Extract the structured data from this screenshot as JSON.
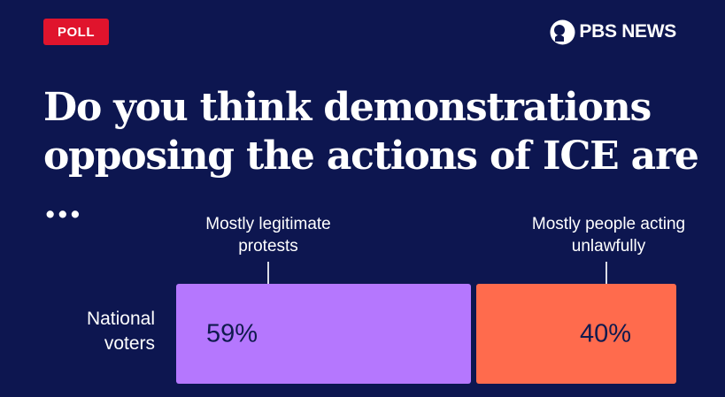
{
  "badge": {
    "label": "POLL"
  },
  "brand": {
    "name": "PBS NEWS",
    "logo_icon": "pbs-head-logo-icon"
  },
  "title": "Do you think demonstrations opposing the actions of ICE are ...",
  "colors": {
    "background": "#0d1650",
    "badge": "#e0142d",
    "legitimate": "#b577fe",
    "unlawful": "#ff6b4d"
  },
  "chart_data": {
    "type": "bar",
    "orientation": "horizontal-stacked",
    "title": "Do you think demonstrations opposing the actions of ICE are ...",
    "categories": [
      "National voters"
    ],
    "series": [
      {
        "name": "Mostly legitimate protests",
        "values": [
          59
        ],
        "label": "59%"
      },
      {
        "name": "Mostly people acting unlawfully",
        "values": [
          40
        ],
        "label": "40%"
      }
    ],
    "unit": "%",
    "xlim": [
      0,
      99
    ],
    "legend_placement": "above bars"
  }
}
